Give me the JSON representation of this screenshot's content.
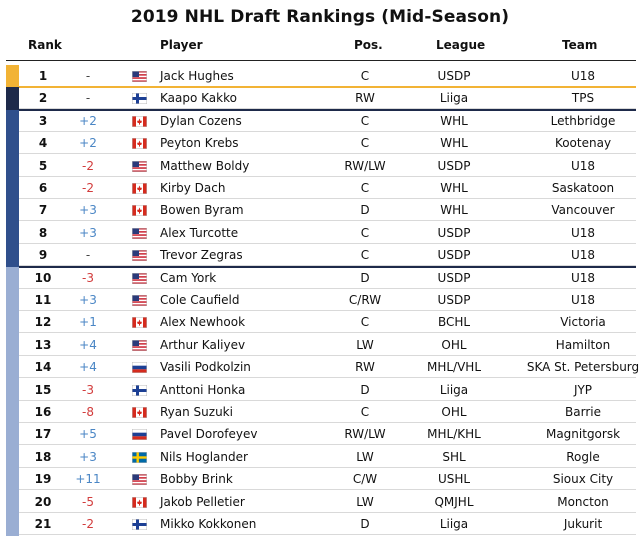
{
  "title": "2019 NHL Draft Rankings (Mid-Season)",
  "headers": {
    "rank": "Rank",
    "player": "Player",
    "pos": "Pos.",
    "league": "League",
    "team": "Team"
  },
  "colors": {
    "tier1": "#f2b335",
    "tier2": "#1e2a4a",
    "tier3": "#2f4f8c",
    "tier4": "#9aaed3",
    "up": "#4a86c5",
    "down": "#d23c3c"
  },
  "chart_data": {
    "type": "table",
    "columns": [
      "Rank",
      "",
      "",
      "Player",
      "Pos.",
      "League",
      "Team"
    ],
    "rows": [
      {
        "rank": "1",
        "change": "-",
        "flag": "usa-flag-icon",
        "player": "Jack Hughes",
        "pos": "C",
        "league": "USDP",
        "team": "U18",
        "tier": 1
      },
      {
        "rank": "2",
        "change": "-",
        "flag": "finland-flag-icon",
        "player": "Kaapo Kakko",
        "pos": "RW",
        "league": "Liiga",
        "team": "TPS",
        "tier": 2
      },
      {
        "rank": "3",
        "change": "+2",
        "flag": "canada-flag-icon",
        "player": "Dylan Cozens",
        "pos": "C",
        "league": "WHL",
        "team": "Lethbridge",
        "tier": 3
      },
      {
        "rank": "4",
        "change": "+2",
        "flag": "canada-flag-icon",
        "player": "Peyton Krebs",
        "pos": "C",
        "league": "WHL",
        "team": "Kootenay",
        "tier": 3
      },
      {
        "rank": "5",
        "change": "-2",
        "flag": "usa-flag-icon",
        "player": "Matthew Boldy",
        "pos": "RW/LW",
        "league": "USDP",
        "team": "U18",
        "tier": 3
      },
      {
        "rank": "6",
        "change": "-2",
        "flag": "canada-flag-icon",
        "player": "Kirby Dach",
        "pos": "C",
        "league": "WHL",
        "team": "Saskatoon",
        "tier": 3
      },
      {
        "rank": "7",
        "change": "+3",
        "flag": "canada-flag-icon",
        "player": "Bowen Byram",
        "pos": "D",
        "league": "WHL",
        "team": "Vancouver",
        "tier": 3
      },
      {
        "rank": "8",
        "change": "+3",
        "flag": "usa-flag-icon",
        "player": "Alex Turcotte",
        "pos": "C",
        "league": "USDP",
        "team": "U18",
        "tier": 3
      },
      {
        "rank": "9",
        "change": "-",
        "flag": "usa-flag-icon",
        "player": "Trevor Zegras",
        "pos": "C",
        "league": "USDP",
        "team": "U18",
        "tier": 3
      },
      {
        "rank": "10",
        "change": "-3",
        "flag": "usa-flag-icon",
        "player": "Cam York",
        "pos": "D",
        "league": "USDP",
        "team": "U18",
        "tier": 4
      },
      {
        "rank": "11",
        "change": "+3",
        "flag": "usa-flag-icon",
        "player": "Cole Caufield",
        "pos": "C/RW",
        "league": "USDP",
        "team": "U18",
        "tier": 4
      },
      {
        "rank": "12",
        "change": "+1",
        "flag": "canada-flag-icon",
        "player": "Alex Newhook",
        "pos": "C",
        "league": "BCHL",
        "team": "Victoria",
        "tier": 4
      },
      {
        "rank": "13",
        "change": "+4",
        "flag": "usa-flag-icon",
        "player": "Arthur Kaliyev",
        "pos": "LW",
        "league": "OHL",
        "team": "Hamilton",
        "tier": 4
      },
      {
        "rank": "14",
        "change": "+4",
        "flag": "russia-flag-icon",
        "player": "Vasili Podkolzin",
        "pos": "RW",
        "league": "MHL/VHL",
        "team": "SKA St. Petersburg",
        "tier": 4
      },
      {
        "rank": "15",
        "change": "-3",
        "flag": "finland-flag-icon",
        "player": "Anttoni Honka",
        "pos": "D",
        "league": "Liiga",
        "team": "JYP",
        "tier": 4
      },
      {
        "rank": "16",
        "change": "-8",
        "flag": "canada-flag-icon",
        "player": "Ryan Suzuki",
        "pos": "C",
        "league": "OHL",
        "team": "Barrie",
        "tier": 4
      },
      {
        "rank": "17",
        "change": "+5",
        "flag": "russia-flag-icon",
        "player": "Pavel Dorofeyev",
        "pos": "RW/LW",
        "league": "MHL/KHL",
        "team": "Magnitgorsk",
        "tier": 4
      },
      {
        "rank": "18",
        "change": "+3",
        "flag": "sweden-flag-icon",
        "player": "Nils Hoglander",
        "pos": "LW",
        "league": "SHL",
        "team": "Rogle",
        "tier": 4
      },
      {
        "rank": "19",
        "change": "+11",
        "flag": "usa-flag-icon",
        "player": "Bobby Brink",
        "pos": "C/W",
        "league": "USHL",
        "team": "Sioux City",
        "tier": 4
      },
      {
        "rank": "20",
        "change": "-5",
        "flag": "canada-flag-icon",
        "player": "Jakob Pelletier",
        "pos": "LW",
        "league": "QMJHL",
        "team": "Moncton",
        "tier": 4
      },
      {
        "rank": "21",
        "change": "-2",
        "flag": "finland-flag-icon",
        "player": "Mikko Kokkonen",
        "pos": "D",
        "league": "Liiga",
        "team": "Jukurit",
        "tier": 4
      }
    ]
  }
}
